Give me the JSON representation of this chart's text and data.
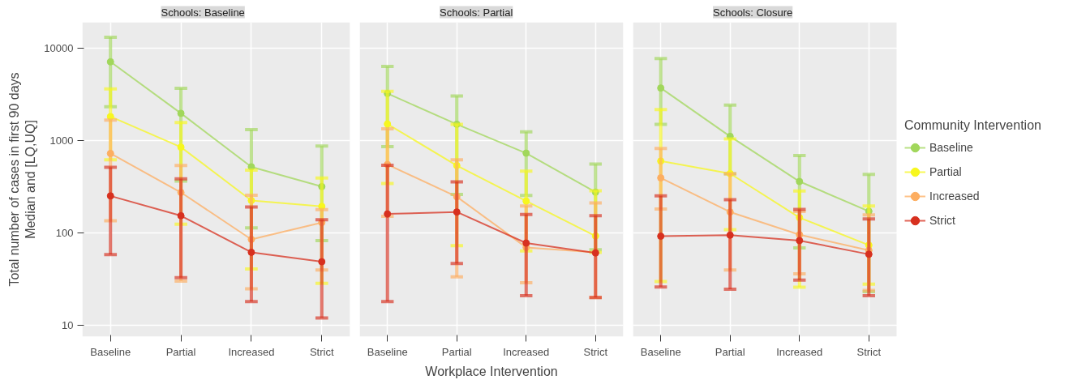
{
  "chart_data": [
    {
      "type": "line",
      "title": "Schools: Baseline",
      "ylabel": "Total number of cases in first 90 days\nMedian and [LQ,UQ]",
      "categories": [
        "Baseline",
        "Partial",
        "Increased",
        "Strict"
      ],
      "ylim": [
        7.6,
        19000
      ],
      "yticks": [
        10,
        100,
        1000,
        10000
      ],
      "log": "y",
      "grid": true,
      "marker": "circle",
      "line_style": "solid",
      "legend": false,
      "series": [
        {
          "color": "#a1d75b",
          "values": [
            7100,
            1970,
            520,
            318
          ],
          "errors": [
            [
              2320,
              13070
            ],
            [
              365,
              3670
            ],
            [
              114,
              1315
            ],
            [
              83,
              871
            ]
          ]
        },
        {
          "color": "#f7f71e",
          "values": [
            1815,
            849,
            225,
            194
          ],
          "errors": [
            [
              621,
              3610
            ],
            [
              125,
              1570
            ],
            [
              41,
              478
            ],
            [
              28.6,
              393
            ]
          ]
        },
        {
          "color": "#fdae61",
          "values": [
            726,
            275,
            85.5,
            130
          ],
          "errors": [
            [
              136,
              1667
            ],
            [
              30.2,
              537
            ],
            [
              25,
              256
            ],
            [
              40,
              179
            ]
          ]
        },
        {
          "color": "#d7301f",
          "values": [
            252,
            154,
            62,
            49
          ],
          "errors": [
            [
              58.5,
              513
            ],
            [
              32.9,
              385
            ],
            [
              18.2,
              191
            ],
            [
              12.1,
              139
            ]
          ]
        }
      ]
    },
    {
      "type": "line",
      "title": "Schools: Partial",
      "xlabel": "Workplace Intervention",
      "categories": [
        "Baseline",
        "Partial",
        "Increased",
        "Strict"
      ],
      "ylim": [
        7.6,
        19000
      ],
      "yticks": [
        10,
        100,
        1000,
        10000
      ],
      "log": "y",
      "grid": true,
      "marker": "circle",
      "line_style": "solid",
      "legend": false,
      "tick_labels": "x",
      "series": [
        {
          "color": "#a1d75b",
          "values": [
            3230,
            1500,
            731,
            277
          ],
          "errors": [
            [
              861,
              6320
            ],
            [
              262,
              3040
            ],
            [
              255,
              1242
            ],
            [
              66,
              558
            ]
          ]
        },
        {
          "color": "#f7f71e",
          "values": [
            1510,
            537,
            222,
            93
          ],
          "errors": [
            [
              344,
              3400
            ],
            [
              73,
              1500
            ],
            [
              64,
              468
            ],
            [
              62,
              287
            ]
          ]
        },
        {
          "color": "#fdae61",
          "values": [
            551,
            247,
            70,
            62
          ],
          "errors": [
            [
              152,
              1343
            ],
            [
              33.7,
              621
            ],
            [
              29,
              196
            ],
            [
              20.1,
              212
            ]
          ]
        },
        {
          "color": "#d7301f",
          "values": [
            161,
            169,
            78,
            61
          ],
          "errors": [
            [
              18.2,
              541
            ],
            [
              46.8,
              358
            ],
            [
              21,
              159
            ],
            [
              20.1,
              154
            ]
          ]
        }
      ]
    },
    {
      "type": "line",
      "title": "Schools: Closure",
      "legend_title": "Community Intervention",
      "categories": [
        "Baseline",
        "Partial",
        "Increased",
        "Strict"
      ],
      "ylim": [
        7.6,
        19000
      ],
      "yticks": [
        10,
        100,
        1000,
        10000
      ],
      "log": "y",
      "grid": true,
      "marker": "circle",
      "line_style": "solid",
      "legend": "right",
      "tick_labels": "x",
      "series": [
        {
          "name": "Baseline",
          "color": "#a1d75b",
          "values": [
            3700,
            1110,
            361,
            172
          ],
          "errors": [
            [
              1500,
              7700
            ],
            [
              438,
              2420
            ],
            [
              69,
              689
            ],
            [
              23.3,
              431
            ]
          ]
        },
        {
          "name": "Partial",
          "color": "#f7f71e",
          "values": [
            600,
            440,
            147,
            74
          ],
          "errors": [
            [
              30,
              2160
            ],
            [
              109,
              1040
            ],
            [
              26,
              285
            ],
            [
              28,
              196
            ]
          ]
        },
        {
          "name": "Increased",
          "color": "#fdae61",
          "values": [
            395,
            169,
            96,
            65
          ],
          "errors": [
            [
              182,
              822
            ],
            [
              40,
              438
            ],
            [
              36.3,
              171
            ],
            [
              24,
              157
            ]
          ]
        },
        {
          "name": "Strict",
          "color": "#d7301f",
          "values": [
            92.5,
            95,
            83,
            59
          ],
          "errors": [
            [
              26.2,
              252
            ],
            [
              24.7,
              230
            ],
            [
              31,
              180
            ],
            [
              21,
              142
            ]
          ]
        }
      ]
    }
  ]
}
